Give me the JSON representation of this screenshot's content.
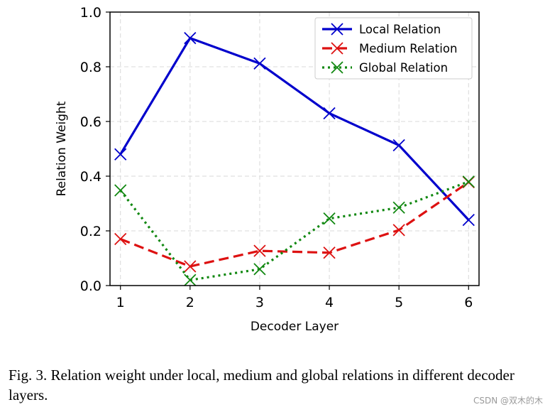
{
  "chart_data": {
    "type": "line",
    "x": [
      1,
      2,
      3,
      4,
      5,
      6
    ],
    "xticks": [
      "1",
      "2",
      "3",
      "4",
      "5",
      "6"
    ],
    "yticks": [
      "0.0",
      "0.2",
      "0.4",
      "0.6",
      "0.8",
      "1.0"
    ],
    "xlabel": "Decoder Layer",
    "ylabel": "Relation Weight",
    "xlim": [
      0.85,
      6.15
    ],
    "ylim": [
      0.0,
      1.0
    ],
    "grid": true,
    "legend_position": "top-right",
    "series": [
      {
        "name": "Local Relation",
        "color": "#0000cc",
        "style": "solid",
        "marker": "x",
        "values": [
          0.48,
          0.905,
          0.812,
          0.63,
          0.513,
          0.24
        ]
      },
      {
        "name": "Medium Relation",
        "color": "#dd1111",
        "style": "dashed",
        "marker": "x",
        "values": [
          0.17,
          0.07,
          0.127,
          0.12,
          0.203,
          0.378
        ]
      },
      {
        "name": "Global Relation",
        "color": "#118811",
        "style": "dotted",
        "marker": "x",
        "values": [
          0.348,
          0.02,
          0.06,
          0.245,
          0.285,
          0.38
        ]
      }
    ]
  },
  "caption": "Fig. 3.  Relation weight under local, medium and global relations in different decoder layers.",
  "watermark": "CSDN @双木的木"
}
